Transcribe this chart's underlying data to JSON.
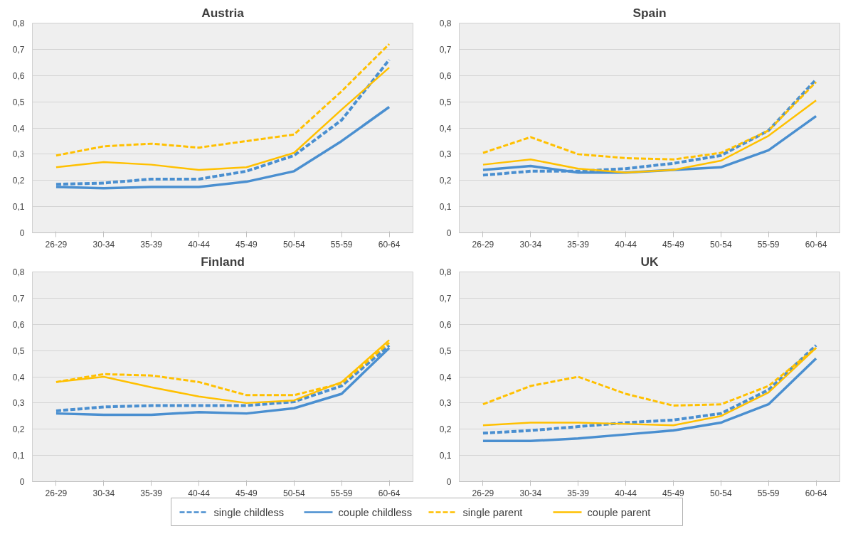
{
  "chart_data": [
    {
      "type": "line",
      "title": "Austria",
      "categories": [
        "26-29",
        "30-34",
        "35-39",
        "40-44",
        "45-49",
        "50-54",
        "55-59",
        "60-64"
      ],
      "ylim": [
        0,
        0.8
      ],
      "yticks": [
        {
          "value": 0,
          "label": "0"
        },
        {
          "value": 0.1,
          "label": "0,1"
        },
        {
          "value": 0.2,
          "label": "0,2"
        },
        {
          "value": 0.3,
          "label": "0,3"
        },
        {
          "value": 0.4,
          "label": "0,4"
        },
        {
          "value": 0.5,
          "label": "0,5"
        },
        {
          "value": 0.6,
          "label": "0,6"
        },
        {
          "value": 0.7,
          "label": "0,7"
        },
        {
          "value": 0.8,
          "label": "0,8"
        }
      ],
      "grid": "y",
      "legend": "bottom",
      "marker": "none",
      "series": [
        {
          "name": "single childless",
          "color": "#4a8fd0",
          "line_style": "dashed",
          "values": [
            0.185,
            0.19,
            0.205,
            0.205,
            0.235,
            0.295,
            0.43,
            0.66
          ]
        },
        {
          "name": "couple childless",
          "color": "#4a8fd0",
          "line_style": "solid",
          "values": [
            0.175,
            0.17,
            0.175,
            0.175,
            0.195,
            0.235,
            0.35,
            0.48
          ]
        },
        {
          "name": "single parent",
          "color": "#ffc000",
          "line_style": "dashed",
          "values": [
            0.295,
            0.33,
            0.34,
            0.325,
            0.35,
            0.375,
            0.54,
            0.72
          ]
        },
        {
          "name": "couple parent",
          "color": "#ffc000",
          "line_style": "solid",
          "values": [
            0.25,
            0.27,
            0.26,
            0.24,
            0.25,
            0.305,
            0.47,
            0.63
          ]
        }
      ]
    },
    {
      "type": "line",
      "title": "Spain",
      "categories": [
        "26-29",
        "30-34",
        "35-39",
        "40-44",
        "45-49",
        "50-54",
        "55-59",
        "60-64"
      ],
      "ylim": [
        0,
        0.8
      ],
      "yticks": [
        {
          "value": 0,
          "label": "0"
        },
        {
          "value": 0.1,
          "label": "0,1"
        },
        {
          "value": 0.2,
          "label": "0,2"
        },
        {
          "value": 0.3,
          "label": "0,3"
        },
        {
          "value": 0.4,
          "label": "0,4"
        },
        {
          "value": 0.5,
          "label": "0,5"
        },
        {
          "value": 0.6,
          "label": "0,6"
        },
        {
          "value": 0.7,
          "label": "0,7"
        },
        {
          "value": 0.8,
          "label": "0,8"
        }
      ],
      "grid": "y",
      "marker": "none",
      "series": [
        {
          "color": "#4a8fd0",
          "line_style": "dashed",
          "values": [
            0.22,
            0.235,
            0.235,
            0.245,
            0.265,
            0.295,
            0.39,
            0.585
          ]
        },
        {
          "color": "#4a8fd0",
          "line_style": "solid",
          "values": [
            0.24,
            0.255,
            0.23,
            0.23,
            0.24,
            0.25,
            0.315,
            0.445
          ]
        },
        {
          "color": "#ffc000",
          "line_style": "dashed",
          "values": [
            0.305,
            0.365,
            0.3,
            0.285,
            0.28,
            0.305,
            0.39,
            0.575
          ]
        },
        {
          "color": "#ffc000",
          "line_style": "solid",
          "values": [
            0.26,
            0.28,
            0.245,
            0.23,
            0.24,
            0.275,
            0.37,
            0.505
          ]
        }
      ]
    },
    {
      "type": "line",
      "title": "Finland",
      "categories": [
        "26-29",
        "30-34",
        "35-39",
        "40-44",
        "45-49",
        "50-54",
        "55-59",
        "60-64"
      ],
      "ylim": [
        0,
        0.8
      ],
      "yticks": [
        {
          "value": 0,
          "label": "0"
        },
        {
          "value": 0.1,
          "label": "0,1"
        },
        {
          "value": 0.2,
          "label": "0,2"
        },
        {
          "value": 0.3,
          "label": "0,3"
        },
        {
          "value": 0.4,
          "label": "0,4"
        },
        {
          "value": 0.5,
          "label": "0,5"
        },
        {
          "value": 0.6,
          "label": "0,6"
        },
        {
          "value": 0.7,
          "label": "0,7"
        },
        {
          "value": 0.8,
          "label": "0,8"
        }
      ],
      "grid": "y",
      "marker": "none",
      "series": [
        {
          "color": "#4a8fd0",
          "line_style": "dashed",
          "values": [
            0.27,
            0.285,
            0.29,
            0.29,
            0.29,
            0.305,
            0.365,
            0.52
          ]
        },
        {
          "color": "#4a8fd0",
          "line_style": "solid",
          "values": [
            0.26,
            0.255,
            0.255,
            0.265,
            0.26,
            0.28,
            0.335,
            0.51
          ]
        },
        {
          "color": "#ffc000",
          "line_style": "dashed",
          "values": [
            0.38,
            0.41,
            0.405,
            0.38,
            0.33,
            0.33,
            0.375,
            0.53
          ]
        },
        {
          "color": "#ffc000",
          "line_style": "solid",
          "values": [
            0.38,
            0.4,
            0.36,
            0.325,
            0.3,
            0.31,
            0.38,
            0.54
          ]
        }
      ]
    },
    {
      "type": "line",
      "title": "UK",
      "categories": [
        "26-29",
        "30-34",
        "35-39",
        "40-44",
        "45-49",
        "50-54",
        "55-59",
        "60-64"
      ],
      "ylim": [
        0,
        0.8
      ],
      "yticks": [
        {
          "value": 0,
          "label": "0"
        },
        {
          "value": 0.1,
          "label": "0,1"
        },
        {
          "value": 0.2,
          "label": "0,2"
        },
        {
          "value": 0.3,
          "label": "0,3"
        },
        {
          "value": 0.4,
          "label": "0,4"
        },
        {
          "value": 0.5,
          "label": "0,5"
        },
        {
          "value": 0.6,
          "label": "0,6"
        },
        {
          "value": 0.7,
          "label": "0,7"
        },
        {
          "value": 0.8,
          "label": "0,8"
        }
      ],
      "grid": "y",
      "marker": "none",
      "series": [
        {
          "color": "#4a8fd0",
          "line_style": "dashed",
          "values": [
            0.185,
            0.195,
            0.21,
            0.225,
            0.235,
            0.26,
            0.35,
            0.52
          ]
        },
        {
          "color": "#4a8fd0",
          "line_style": "solid",
          "values": [
            0.155,
            0.155,
            0.165,
            0.18,
            0.195,
            0.225,
            0.295,
            0.47
          ]
        },
        {
          "color": "#ffc000",
          "line_style": "dashed",
          "values": [
            0.295,
            0.365,
            0.4,
            0.335,
            0.29,
            0.295,
            0.365,
            0.51
          ]
        },
        {
          "color": "#ffc000",
          "line_style": "solid",
          "values": [
            0.215,
            0.225,
            0.225,
            0.22,
            0.215,
            0.25,
            0.34,
            0.51
          ]
        }
      ]
    }
  ]
}
